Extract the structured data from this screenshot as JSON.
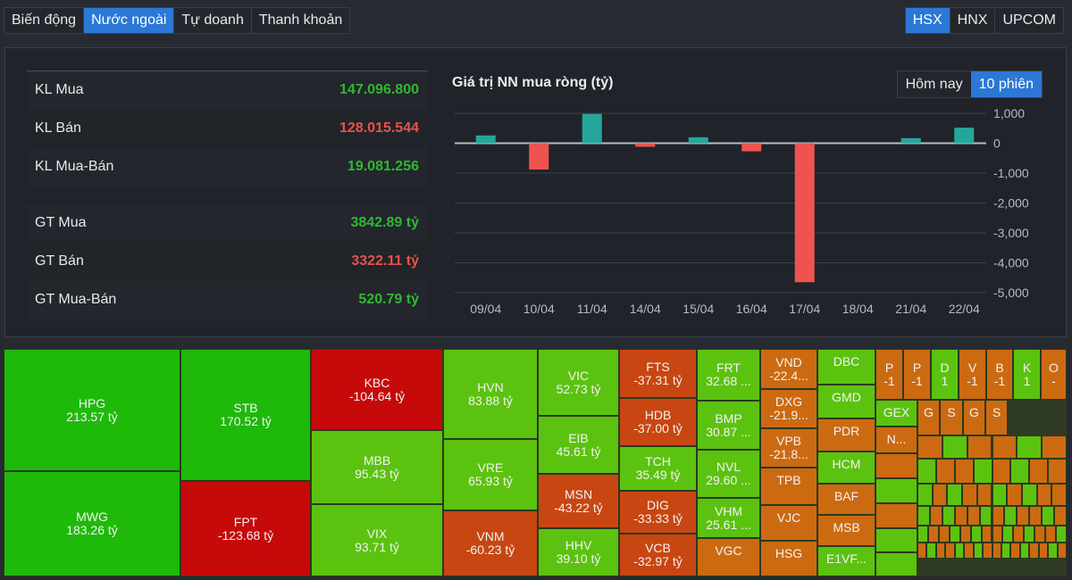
{
  "tabs": [
    {
      "label": "Biến động",
      "active": false
    },
    {
      "label": "Nước ngoài",
      "active": true
    },
    {
      "label": "Tự doanh",
      "active": false
    },
    {
      "label": "Thanh khoản",
      "active": false
    }
  ],
  "exchanges": [
    {
      "label": "HSX",
      "active": true
    },
    {
      "label": "HNX",
      "active": false
    },
    {
      "label": "UPCOM",
      "active": false
    }
  ],
  "stats": [
    {
      "label": "KL Mua",
      "value": "147.096.800",
      "tone": "green"
    },
    {
      "label": "KL Bán",
      "value": "128.015.544",
      "tone": "red"
    },
    {
      "label": "KL Mua-Bán",
      "value": "19.081.256",
      "tone": "green"
    },
    {
      "label": "GT Mua",
      "value": "3842.89 tỷ",
      "tone": "green"
    },
    {
      "label": "GT Bán",
      "value": "3322.11 tỷ",
      "tone": "red"
    },
    {
      "label": "GT Mua-Bán",
      "value": "520.79 tỷ",
      "tone": "green"
    }
  ],
  "range": {
    "today_label": "Hôm nay",
    "ten_label": "10 phiên",
    "active": "10 phiên"
  },
  "colors": {
    "accent": "#2b78d6",
    "positive_bar": "#26a69a",
    "negative_bar": "#ef5350",
    "up_text": "#2fb82f",
    "down_text": "#e5534b",
    "tm_green_strong": "#1fb90a",
    "tm_green": "#5cc210",
    "tm_red_strong": "#c60a0a",
    "tm_red": "#c84612",
    "tm_orange": "#cc6a12"
  },
  "chart_data": {
    "type": "bar",
    "title": "Giá trị NN mua ròng (tỷ)",
    "xlabel": "",
    "ylabel": "",
    "categories": [
      "09/04",
      "10/04",
      "11/04",
      "14/04",
      "15/04",
      "16/04",
      "17/04",
      "18/04",
      "21/04",
      "22/04"
    ],
    "values": [
      260,
      -880,
      980,
      -120,
      200,
      -270,
      -4650,
      0,
      170,
      520.79
    ],
    "yticks": [
      "1,000",
      "0",
      "-1,000",
      "-2,000",
      "-3,000",
      "-4,000",
      "-5,000"
    ],
    "ytick_values": [
      1000,
      0,
      -1000,
      -2000,
      -3000,
      -4000,
      -5000
    ],
    "ylim": [
      -5000,
      1000
    ],
    "grid": true,
    "y_axis_side": "right"
  },
  "treemap": [
    {
      "sym": "HPG",
      "val": "213.57 tỷ",
      "c": "tm_green_strong"
    },
    {
      "sym": "MWG",
      "val": "183.26 tỷ",
      "c": "tm_green_strong"
    },
    {
      "sym": "STB",
      "val": "170.52 tỷ",
      "c": "tm_green_strong"
    },
    {
      "sym": "FPT",
      "val": "-123.68 tỷ",
      "c": "tm_red_strong"
    },
    {
      "sym": "KBC",
      "val": "-104.64 tỷ",
      "c": "tm_red_strong"
    },
    {
      "sym": "MBB",
      "val": "95.43 tỷ",
      "c": "tm_green"
    },
    {
      "sym": "VIX",
      "val": "93.71 tỷ",
      "c": "tm_green"
    },
    {
      "sym": "HVN",
      "val": "83.88 tỷ",
      "c": "tm_green"
    },
    {
      "sym": "VRE",
      "val": "65.93 tỷ",
      "c": "tm_green"
    },
    {
      "sym": "VNM",
      "val": "-60.23 tỷ",
      "c": "tm_red"
    },
    {
      "sym": "VIC",
      "val": "52.73 tỷ",
      "c": "tm_green"
    },
    {
      "sym": "EIB",
      "val": "45.61 tỷ",
      "c": "tm_green"
    },
    {
      "sym": "MSN",
      "val": "-43.22 tỷ",
      "c": "tm_red"
    },
    {
      "sym": "HHV",
      "val": "39.10 tỷ",
      "c": "tm_green"
    },
    {
      "sym": "FTS",
      "val": "-37.31 tỷ",
      "c": "tm_red"
    },
    {
      "sym": "HDB",
      "val": "-37.00 tỷ",
      "c": "tm_red"
    },
    {
      "sym": "TCH",
      "val": "35.49 tỷ",
      "c": "tm_green"
    },
    {
      "sym": "DIG",
      "val": "-33.33 tỷ",
      "c": "tm_red"
    },
    {
      "sym": "VCB",
      "val": "-32.97 tỷ",
      "c": "tm_red"
    },
    {
      "sym": "FRT",
      "val": "32.68 ...",
      "c": "tm_green"
    },
    {
      "sym": "BMP",
      "val": "30.87 ...",
      "c": "tm_green"
    },
    {
      "sym": "NVL",
      "val": "29.60 ...",
      "c": "tm_green"
    },
    {
      "sym": "VHM",
      "val": "25.61 ...",
      "c": "tm_green"
    },
    {
      "sym": "VGC",
      "val": "",
      "c": "tm_orange"
    },
    {
      "sym": "VND",
      "val": "-22.4...",
      "c": "tm_orange"
    },
    {
      "sym": "DXG",
      "val": "-21.9...",
      "c": "tm_orange"
    },
    {
      "sym": "VPB",
      "val": "-21.8...",
      "c": "tm_orange"
    },
    {
      "sym": "TPB",
      "val": "",
      "c": "tm_orange"
    },
    {
      "sym": "VJC",
      "val": "",
      "c": "tm_orange"
    },
    {
      "sym": "HSG",
      "val": "",
      "c": "tm_orange"
    },
    {
      "sym": "DBC",
      "val": "",
      "c": "tm_green"
    },
    {
      "sym": "GMD",
      "val": "",
      "c": "tm_green"
    },
    {
      "sym": "PDR",
      "val": "",
      "c": "tm_orange"
    },
    {
      "sym": "HCM",
      "val": "",
      "c": "tm_green"
    },
    {
      "sym": "BAF",
      "val": "",
      "c": "tm_orange"
    },
    {
      "sym": "MSB",
      "val": "",
      "c": "tm_orange"
    },
    {
      "sym": "E1VF...",
      "val": "",
      "c": "tm_green"
    },
    {
      "sym": "P",
      "val": "-1",
      "c": "tm_orange"
    },
    {
      "sym": "P",
      "val": "-1",
      "c": "tm_orange"
    },
    {
      "sym": "D",
      "val": "1",
      "c": "tm_green"
    },
    {
      "sym": "V",
      "val": "-1",
      "c": "tm_orange"
    },
    {
      "sym": "B",
      "val": "-1",
      "c": "tm_orange"
    },
    {
      "sym": "K",
      "val": "1",
      "c": "tm_green"
    },
    {
      "sym": "O",
      "val": "-",
      "c": "tm_orange"
    },
    {
      "sym": "GEX",
      "val": "",
      "c": "tm_green"
    },
    {
      "sym": "N...",
      "val": "",
      "c": "tm_orange"
    },
    {
      "sym": "G",
      "val": "",
      "c": "tm_orange"
    },
    {
      "sym": "S",
      "val": "",
      "c": "tm_orange"
    },
    {
      "sym": "G",
      "val": "",
      "c": "tm_orange"
    },
    {
      "sym": "S",
      "val": "",
      "c": "tm_orange"
    }
  ]
}
